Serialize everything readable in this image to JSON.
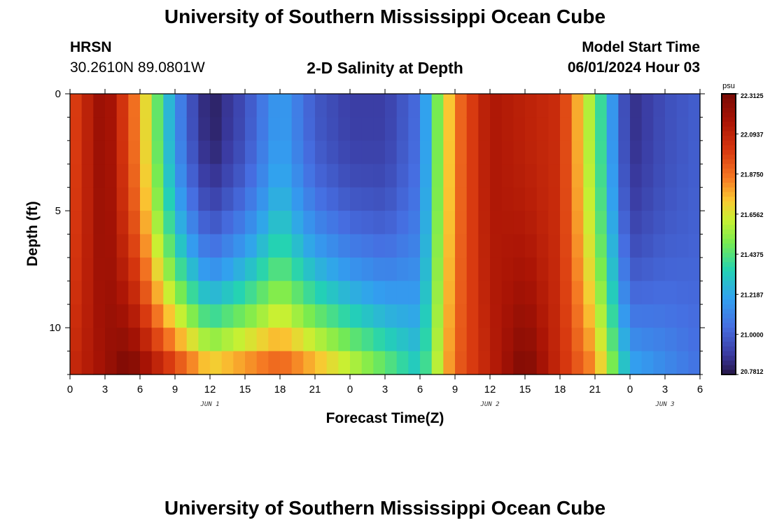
{
  "page": {
    "title": "University of Southern Mississippi Ocean Cube",
    "footer_title": "University of Southern Mississippi Ocean Cube",
    "station": "HRSN",
    "location": "30.2610N  89.0801W",
    "subtitle": "2-D Salinity at Depth",
    "start_label": "Model Start Time",
    "start_value": "06/01/2024 Hour 03"
  },
  "chart_data": {
    "type": "heatmap",
    "title": "2-D Salinity at Depth",
    "xlabel": "Forecast Time(Z)",
    "ylabel": "Depth (ft)",
    "x_tick_labels": [
      "0",
      "3",
      "6",
      "9",
      "12",
      "15",
      "18",
      "21",
      "0",
      "3",
      "6",
      "9",
      "12",
      "15",
      "18",
      "21",
      "0",
      "3",
      "6"
    ],
    "date_labels": [
      {
        "label": "JUN 1",
        "at_tick": 4
      },
      {
        "label": "JUN 2",
        "at_tick": 12
      },
      {
        "label": "JUN 3",
        "at_tick": 17
      }
    ],
    "x_range_hours": [
      0,
      54
    ],
    "y_tick_labels": [
      "0",
      "5",
      "10"
    ],
    "y_ticks": [
      0,
      5,
      10
    ],
    "ylim": [
      0,
      12
    ],
    "y_inverted": true,
    "depth_layers_ft": [
      0.5,
      1.5,
      2.5,
      3.5,
      4.5,
      5.5,
      6.5,
      7.5,
      8.5,
      9.5,
      10.5,
      11.5
    ],
    "colorbar": {
      "unit": "psu",
      "tick_labels": [
        "22.3125",
        "22.0937",
        "21.8750",
        "21.6562",
        "21.4375",
        "21.2187",
        "21.0000",
        "20.7812"
      ],
      "min": 20.7812,
      "max": 22.3125
    },
    "surface_salinity_psu": [
      {
        "hour": 0,
        "value": 21.95
      },
      {
        "hour": 3,
        "value": 22.25
      },
      {
        "hour": 6,
        "value": 21.8
      },
      {
        "hour": 8,
        "value": 21.35
      },
      {
        "hour": 10,
        "value": 21.0
      },
      {
        "hour": 12,
        "value": 20.8
      },
      {
        "hour": 15,
        "value": 20.95
      },
      {
        "hour": 18,
        "value": 21.2
      },
      {
        "hour": 21,
        "value": 20.98
      },
      {
        "hour": 24,
        "value": 20.9
      },
      {
        "hour": 27,
        "value": 20.9
      },
      {
        "hour": 30,
        "value": 21.05
      },
      {
        "hour": 31.5,
        "value": 21.5
      },
      {
        "hour": 33,
        "value": 21.85
      },
      {
        "hour": 36,
        "value": 22.15
      },
      {
        "hour": 42,
        "value": 22.05
      },
      {
        "hour": 45,
        "value": 21.5
      },
      {
        "hour": 47,
        "value": 21.05
      },
      {
        "hour": 48,
        "value": 20.85
      },
      {
        "hour": 51,
        "value": 20.95
      },
      {
        "hour": 54,
        "value": 21.0
      }
    ],
    "bottom_salinity_psu": [
      {
        "hour": 0,
        "value": 22.05
      },
      {
        "hour": 5,
        "value": 22.3
      },
      {
        "hour": 12,
        "value": 21.7
      },
      {
        "hour": 18,
        "value": 21.9
      },
      {
        "hour": 24,
        "value": 21.6
      },
      {
        "hour": 30,
        "value": 21.3
      },
      {
        "hour": 33,
        "value": 21.9
      },
      {
        "hour": 39,
        "value": 22.3
      },
      {
        "hour": 45,
        "value": 21.8
      },
      {
        "hour": 48,
        "value": 21.2
      },
      {
        "hour": 54,
        "value": 21.05
      }
    ]
  }
}
